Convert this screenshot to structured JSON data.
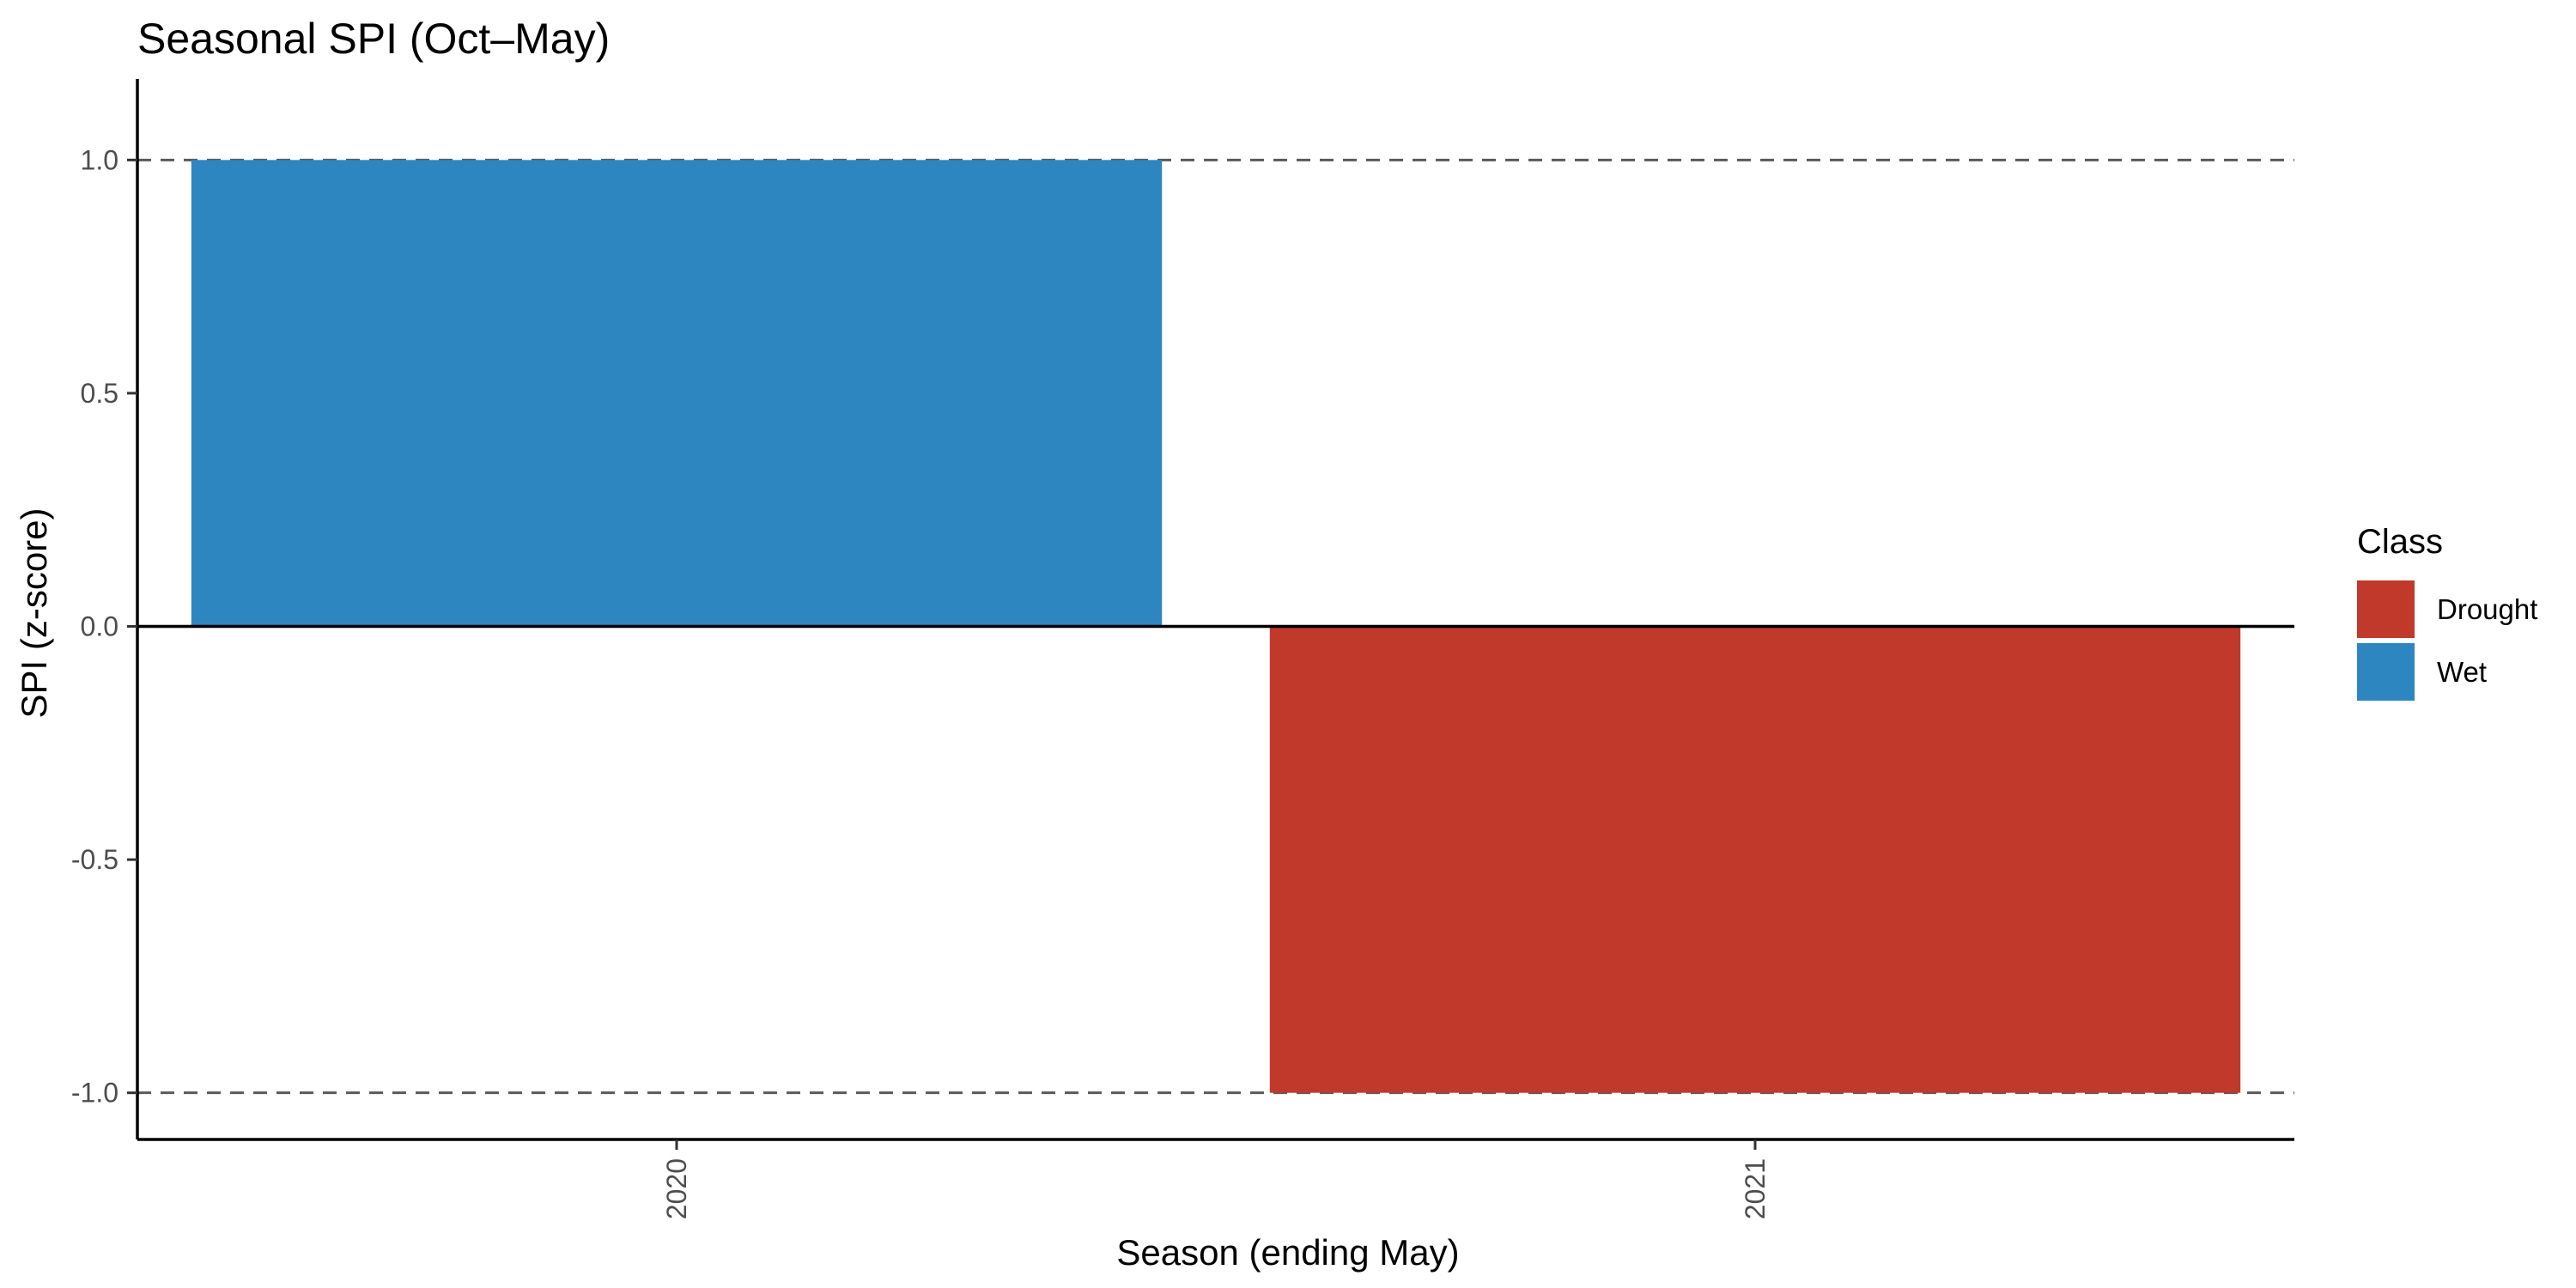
{
  "chart_data": {
    "type": "bar",
    "title": "Seasonal SPI (Oct–May)",
    "xlabel": "Season (ending May)",
    "ylabel": "SPI (z-score)",
    "categories": [
      "2020",
      "2021"
    ],
    "values": [
      1.0,
      -1.0
    ],
    "classes": [
      "Wet",
      "Drought"
    ],
    "ylim": [
      -1.1,
      1.1
    ],
    "yticks": [
      {
        "value": 1.0,
        "label": "1.0"
      },
      {
        "value": 0.5,
        "label": "0.5"
      },
      {
        "value": 0.0,
        "label": "0.0"
      },
      {
        "value": -0.5,
        "label": "-0.5"
      },
      {
        "value": -1.0,
        "label": "-1.0"
      }
    ],
    "reference_lines": [
      {
        "value": 1.0,
        "style": "dashed"
      },
      {
        "value": 0.0,
        "style": "solid"
      },
      {
        "value": -1.0,
        "style": "dashed"
      }
    ],
    "legend": {
      "title": "Class",
      "placement": "right",
      "items": [
        {
          "label": "Drought",
          "color": "#c0392b"
        },
        {
          "label": "Wet",
          "color": "#2e86c1"
        }
      ]
    },
    "grid": false
  }
}
